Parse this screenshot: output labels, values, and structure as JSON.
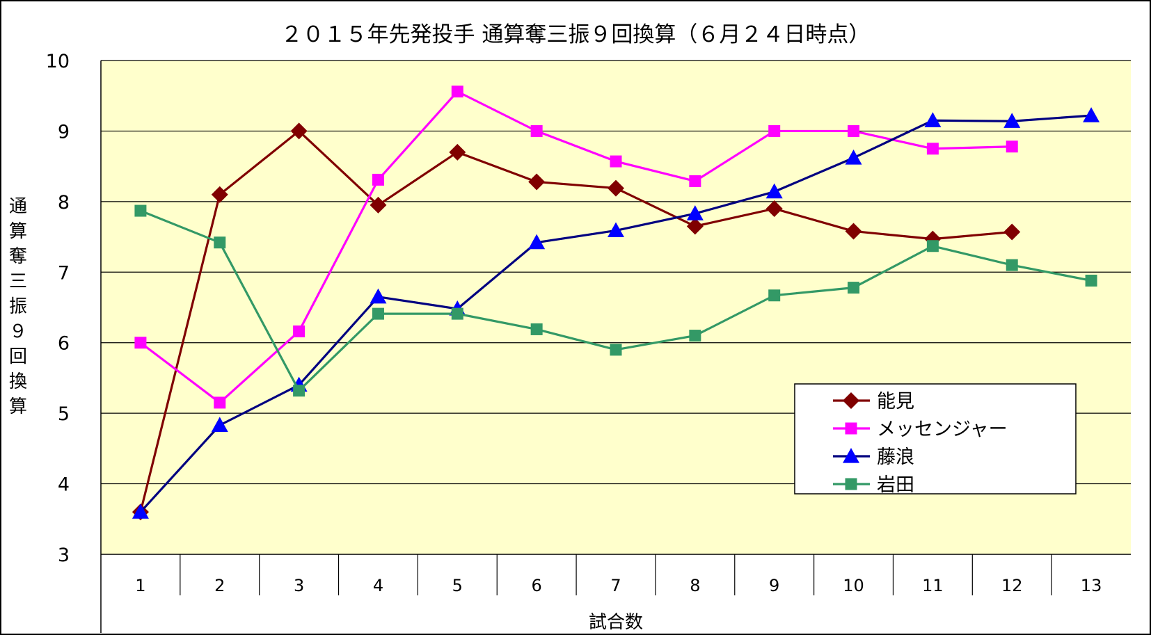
{
  "chart_data": {
    "type": "line",
    "title": "２０１５年先発投手 通算奪三振９回換算（６月２４日時点）",
    "xlabel": "試合数",
    "ylabel": "通算奪三振９回換算",
    "categories": [
      "1",
      "2",
      "3",
      "4",
      "5",
      "6",
      "7",
      "8",
      "9",
      "10",
      "11",
      "12",
      "13"
    ],
    "ylim": [
      3,
      10
    ],
    "yticks": [
      "3",
      "4",
      "5",
      "6",
      "7",
      "8",
      "9",
      "10"
    ],
    "grid": true,
    "plot_background": "#FFFFCC",
    "legend_position": "bottom-right",
    "series": [
      {
        "name": "能見",
        "color": "#800000",
        "marker": "diamond",
        "values": [
          3.6,
          8.1,
          9.0,
          7.95,
          8.7,
          8.28,
          8.19,
          7.65,
          7.9,
          7.58,
          7.47,
          7.57,
          null
        ]
      },
      {
        "name": "メッセンジャー",
        "color": "#FF00FF",
        "marker": "square",
        "values": [
          6.0,
          5.15,
          6.16,
          8.31,
          9.56,
          9.0,
          8.57,
          8.29,
          9.0,
          9.0,
          8.75,
          8.78,
          null
        ]
      },
      {
        "name": "藤浪",
        "color": "#000080",
        "marker_color": "#0000FF",
        "marker": "triangle",
        "values": [
          3.6,
          4.83,
          5.4,
          6.65,
          6.48,
          7.42,
          7.59,
          7.83,
          8.14,
          8.62,
          9.15,
          9.14,
          9.22
        ]
      },
      {
        "name": "岩田",
        "color": "#339966",
        "marker": "square",
        "values": [
          7.87,
          7.42,
          5.32,
          6.41,
          6.41,
          6.19,
          5.9,
          6.1,
          6.67,
          6.78,
          7.37,
          7.1,
          6.88
        ]
      }
    ]
  }
}
